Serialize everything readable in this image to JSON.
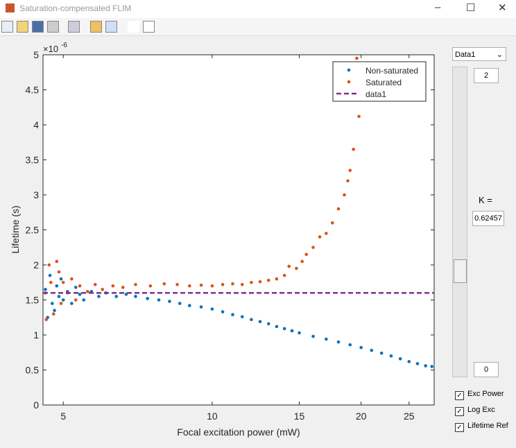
{
  "window": {
    "title": "Saturation-compensated FLIM"
  },
  "controls": {
    "dropdown": "Data1",
    "slider_max": "2",
    "slider_min": "0",
    "k_label": "K =",
    "k_value": "0.62457",
    "checkboxes": [
      "Exc Power",
      "Log Exc",
      "Lifetime Ref"
    ]
  },
  "chart_data": {
    "type": "scatter",
    "xlabel": "Focal excitation power (mW)",
    "ylabel": "Lifetime (s)",
    "y_multiplier": "×10",
    "y_multiplier_exponent": "-6",
    "xlim": [
      4.55,
      28.1
    ],
    "xticks": [
      5,
      10,
      15,
      20,
      25
    ],
    "xscale": "log",
    "ylim": [
      0,
      5
    ],
    "yticks": [
      0,
      0.5,
      1,
      1.5,
      2,
      2.5,
      3,
      3.5,
      4,
      4.5,
      5
    ],
    "legend": "upper right",
    "series": [
      {
        "name": "Non-saturated",
        "color": "#0072bd",
        "style": "dots",
        "x": [
          4.6,
          4.65,
          4.7,
          4.75,
          4.8,
          4.85,
          4.9,
          4.95,
          5.0,
          5.1,
          5.2,
          5.3,
          5.4,
          5.5,
          5.7,
          5.9,
          6.1,
          6.4,
          6.7,
          7.0,
          7.4,
          7.8,
          8.2,
          8.6,
          9.0,
          9.5,
          10.0,
          10.5,
          11.0,
          11.5,
          12.0,
          12.5,
          13.0,
          13.5,
          14.0,
          14.5,
          15.0,
          16.0,
          17.0,
          18.0,
          19.0,
          20.0,
          21.0,
          22.0,
          23.0,
          24.0,
          25.0,
          26.0,
          27.0,
          27.8
        ],
        "values": [
          1.65,
          1.25,
          1.85,
          1.45,
          1.35,
          1.7,
          1.55,
          1.8,
          1.5,
          1.62,
          1.45,
          1.68,
          1.58,
          1.5,
          1.62,
          1.55,
          1.6,
          1.55,
          1.58,
          1.55,
          1.52,
          1.5,
          1.48,
          1.45,
          1.42,
          1.4,
          1.37,
          1.33,
          1.29,
          1.26,
          1.22,
          1.19,
          1.16,
          1.12,
          1.09,
          1.06,
          1.03,
          0.98,
          0.94,
          0.9,
          0.86,
          0.82,
          0.78,
          0.74,
          0.7,
          0.66,
          0.62,
          0.59,
          0.56,
          0.55
        ]
      },
      {
        "name": "Saturated",
        "color": "#d95319",
        "style": "dots",
        "x": [
          4.6,
          4.62,
          4.68,
          4.72,
          4.78,
          4.85,
          4.9,
          4.95,
          5.0,
          5.1,
          5.2,
          5.3,
          5.4,
          5.6,
          5.8,
          6.0,
          6.3,
          6.6,
          7.0,
          7.5,
          8.0,
          8.5,
          9.0,
          9.5,
          10.0,
          10.5,
          11.0,
          11.5,
          12.0,
          12.5,
          13.0,
          13.5,
          14.0,
          14.3,
          14.8,
          15.2,
          15.5,
          16.0,
          16.5,
          17.0,
          17.5,
          18.0,
          18.5,
          18.8,
          19.0,
          19.3,
          19.8,
          19.6
        ],
        "values": [
          1.6,
          1.22,
          2.0,
          1.75,
          1.3,
          2.05,
          1.9,
          1.45,
          1.75,
          1.6,
          1.8,
          1.5,
          1.7,
          1.62,
          1.72,
          1.65,
          1.7,
          1.68,
          1.72,
          1.7,
          1.73,
          1.72,
          1.7,
          1.71,
          1.7,
          1.72,
          1.73,
          1.72,
          1.75,
          1.76,
          1.78,
          1.8,
          1.85,
          1.98,
          1.95,
          2.05,
          2.15,
          2.25,
          2.4,
          2.45,
          2.6,
          2.8,
          3.0,
          3.2,
          3.35,
          3.65,
          4.12,
          4.95
        ]
      },
      {
        "name": "data1",
        "color": "#7e2f8e",
        "style": "dashed",
        "x": [
          4.55,
          28.1
        ],
        "values": [
          1.6,
          1.6
        ]
      }
    ]
  }
}
